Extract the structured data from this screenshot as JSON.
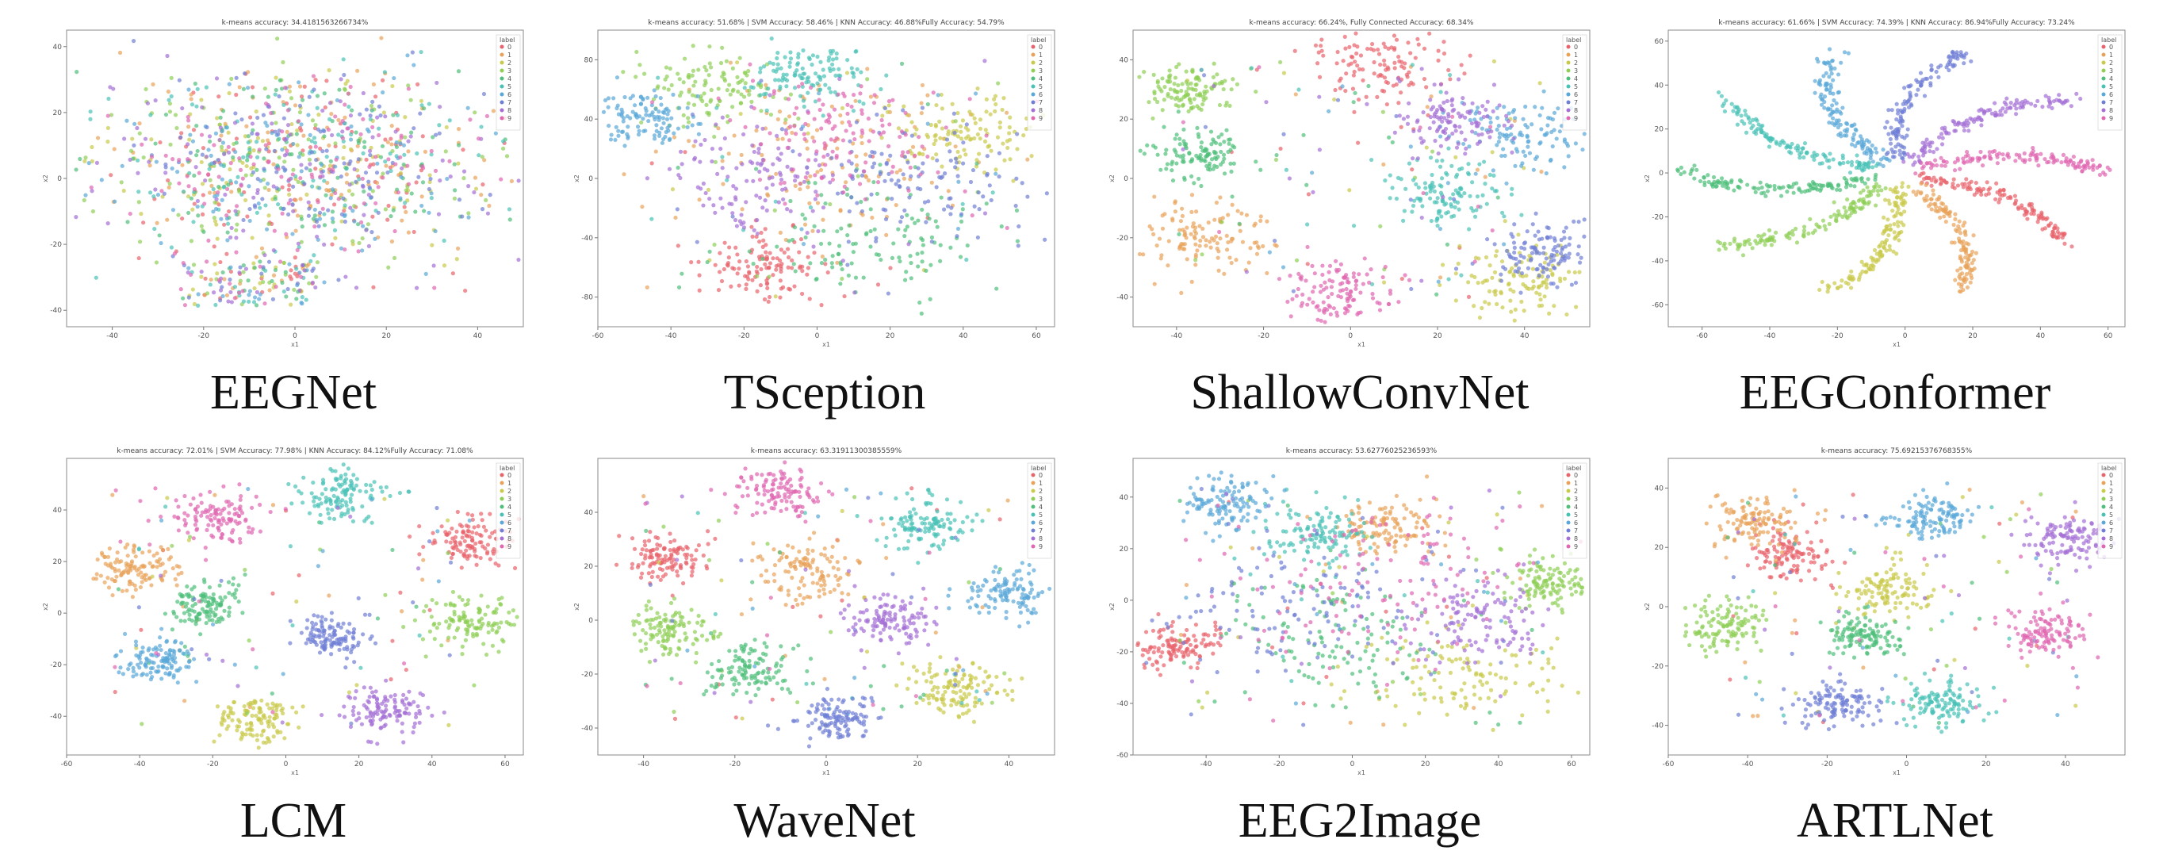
{
  "figure": {
    "panels": [
      {
        "caption": "EEGNet",
        "title": "k-means accuracy: 34.4181563266734%",
        "xlabel": "x1",
        "ylabel": "x2",
        "legend_title": "label"
      },
      {
        "caption": "TSception",
        "title": "k-means accuracy: 51.68% | SVM Accuracy: 58.46% | KNN Accuracy: 46.88%Fully Accuracy: 54.79%",
        "xlabel": "x1",
        "ylabel": "x2",
        "legend_title": "label"
      },
      {
        "caption": "ShallowConvNet",
        "title": "k-means accuracy: 66.24%, Fully Connected Accuracy: 68.34%",
        "xlabel": "x1",
        "ylabel": "x2",
        "legend_title": "label"
      },
      {
        "caption": "EEGConformer",
        "title": "k-means accuracy: 61.66% | SVM Accuracy: 74.39% | KNN Accuracy: 86.94%Fully Accuracy: 73.24%",
        "xlabel": "x1",
        "ylabel": "x2",
        "legend_title": "label"
      },
      {
        "caption": "LCM",
        "title": "k-means accuracy: 72.01% | SVM Accuracy: 77.98% | KNN Accuracy: 84.12%Fully Accuracy: 71.08%",
        "xlabel": "x1",
        "ylabel": "x2",
        "legend_title": "label"
      },
      {
        "caption": "WaveNet",
        "title": "k-means accuracy: 63.31911300385559%",
        "xlabel": "x1",
        "ylabel": "x2",
        "legend_title": "label"
      },
      {
        "caption": "EEG2Image",
        "title": "k-means accuracy: 53.62776025236593%",
        "xlabel": "x1",
        "ylabel": "x2",
        "legend_title": "label"
      },
      {
        "caption": "ARTLNet",
        "title": "k-means accuracy: 75.69215376768355%",
        "xlabel": "x1",
        "ylabel": "x2",
        "legend_title": "label"
      }
    ],
    "legend_labels": [
      "0",
      "1",
      "2",
      "3",
      "4",
      "5",
      "6",
      "7",
      "8",
      "9"
    ],
    "class_colors": [
      "#e8636b",
      "#e8a35a",
      "#c9c94a",
      "#8fcf55",
      "#4fbf7a",
      "#49c2b6",
      "#5aa8d8",
      "#6f7fd6",
      "#a46fd6",
      "#e067b0"
    ]
  },
  "chart_data": [
    {
      "type": "scatter",
      "caption": "EEGNet",
      "title": "k-means accuracy: 34.4181563266734%",
      "xlabel": "x1",
      "ylabel": "x2",
      "xlim": [
        -50,
        50
      ],
      "ylim": [
        -45,
        45
      ],
      "xticks": [
        -40,
        -20,
        0,
        20,
        40
      ],
      "yticks": [
        -40,
        -20,
        0,
        20,
        40
      ],
      "legend": "top-right",
      "series": [
        {
          "name": "0"
        },
        {
          "name": "1"
        },
        {
          "name": "2"
        },
        {
          "name": "3"
        },
        {
          "name": "4"
        },
        {
          "name": "5"
        },
        {
          "name": "6"
        },
        {
          "name": "7"
        },
        {
          "name": "8"
        },
        {
          "name": "9"
        }
      ]
    },
    {
      "type": "scatter",
      "caption": "TSception",
      "title": "k-means accuracy: 51.68% | SVM Accuracy: 58.46% | KNN Accuracy: 46.88%Fully Accuracy: 54.79%",
      "xlabel": "x1",
      "ylabel": "x2",
      "xlim": [
        -60,
        65
      ],
      "ylim": [
        -100,
        100
      ],
      "xticks": [
        -60,
        -40,
        -20,
        0,
        20,
        40,
        60
      ],
      "yticks": [
        -80,
        -40,
        0,
        40,
        80
      ],
      "legend": "top-right",
      "series": [
        {
          "name": "0"
        },
        {
          "name": "1"
        },
        {
          "name": "2"
        },
        {
          "name": "3"
        },
        {
          "name": "4"
        },
        {
          "name": "5"
        },
        {
          "name": "6"
        },
        {
          "name": "7"
        },
        {
          "name": "8"
        },
        {
          "name": "9"
        }
      ]
    },
    {
      "type": "scatter",
      "caption": "ShallowConvNet",
      "title": "k-means accuracy: 66.24%, Fully Connected Accuracy: 68.34%",
      "xlabel": "x1",
      "ylabel": "x2",
      "xlim": [
        -50,
        55
      ],
      "ylim": [
        -50,
        50
      ],
      "xticks": [
        -40,
        -20,
        0,
        20,
        40
      ],
      "yticks": [
        -40,
        -20,
        0,
        20,
        40
      ],
      "legend": "top-right",
      "series": [
        {
          "name": "0"
        },
        {
          "name": "1"
        },
        {
          "name": "2"
        },
        {
          "name": "3"
        },
        {
          "name": "4"
        },
        {
          "name": "5"
        },
        {
          "name": "6"
        },
        {
          "name": "7"
        },
        {
          "name": "8"
        },
        {
          "name": "9"
        }
      ]
    },
    {
      "type": "scatter",
      "caption": "EEGConformer",
      "title": "k-means accuracy: 61.66% | SVM Accuracy: 74.39% | KNN Accuracy: 86.94%Fully Accuracy: 73.24%",
      "xlabel": "x1",
      "ylabel": "x2",
      "xlim": [
        -70,
        65
      ],
      "ylim": [
        -70,
        65
      ],
      "xticks": [
        -60,
        -40,
        -20,
        0,
        20,
        40,
        60
      ],
      "yticks": [
        -60,
        -40,
        -20,
        0,
        20,
        40,
        60
      ],
      "legend": "top-right",
      "series": [
        {
          "name": "0"
        },
        {
          "name": "1"
        },
        {
          "name": "2"
        },
        {
          "name": "3"
        },
        {
          "name": "4"
        },
        {
          "name": "5"
        },
        {
          "name": "6"
        },
        {
          "name": "7"
        },
        {
          "name": "8"
        },
        {
          "name": "9"
        }
      ]
    },
    {
      "type": "scatter",
      "caption": "LCM",
      "title": "k-means accuracy: 72.01% | SVM Accuracy: 77.98% | KNN Accuracy: 84.12%Fully Accuracy: 71.08%",
      "xlabel": "x1",
      "ylabel": "x2",
      "xlim": [
        -60,
        65
      ],
      "ylim": [
        -55,
        60
      ],
      "xticks": [
        -60,
        -40,
        -20,
        0,
        20,
        40,
        60
      ],
      "yticks": [
        -40,
        -20,
        0,
        20,
        40
      ],
      "legend": "top-right",
      "series": [
        {
          "name": "0"
        },
        {
          "name": "1"
        },
        {
          "name": "2"
        },
        {
          "name": "3"
        },
        {
          "name": "4"
        },
        {
          "name": "5"
        },
        {
          "name": "6"
        },
        {
          "name": "7"
        },
        {
          "name": "8"
        },
        {
          "name": "9"
        }
      ]
    },
    {
      "type": "scatter",
      "caption": "WaveNet",
      "title": "k-means accuracy: 63.31911300385559%",
      "xlabel": "x1",
      "ylabel": "x2",
      "xlim": [
        -50,
        50
      ],
      "ylim": [
        -50,
        60
      ],
      "xticks": [
        -40,
        -20,
        0,
        20,
        40
      ],
      "yticks": [
        -40,
        -20,
        0,
        20,
        40
      ],
      "legend": "top-right",
      "series": [
        {
          "name": "0"
        },
        {
          "name": "1"
        },
        {
          "name": "2"
        },
        {
          "name": "3"
        },
        {
          "name": "4"
        },
        {
          "name": "5"
        },
        {
          "name": "6"
        },
        {
          "name": "7"
        },
        {
          "name": "8"
        },
        {
          "name": "9"
        }
      ]
    },
    {
      "type": "scatter",
      "caption": "EEG2Image",
      "title": "k-means accuracy: 53.62776025236593%",
      "xlabel": "x1",
      "ylabel": "x2",
      "xlim": [
        -60,
        65
      ],
      "ylim": [
        -60,
        55
      ],
      "xticks": [
        -40,
        -20,
        0,
        20,
        40,
        60
      ],
      "yticks": [
        -60,
        -40,
        -20,
        0,
        20,
        40
      ],
      "legend": "top-right",
      "series": [
        {
          "name": "0"
        },
        {
          "name": "1"
        },
        {
          "name": "2"
        },
        {
          "name": "3"
        },
        {
          "name": "4"
        },
        {
          "name": "5"
        },
        {
          "name": "6"
        },
        {
          "name": "7"
        },
        {
          "name": "8"
        },
        {
          "name": "9"
        }
      ]
    },
    {
      "type": "scatter",
      "caption": "ARTLNet",
      "title": "k-means accuracy: 75.69215376768355%",
      "xlabel": "x1",
      "ylabel": "x2",
      "xlim": [
        -60,
        55
      ],
      "ylim": [
        -50,
        50
      ],
      "xticks": [
        -60,
        -40,
        -20,
        0,
        20,
        40
      ],
      "yticks": [
        -40,
        -20,
        0,
        20,
        40
      ],
      "legend": "top-right",
      "series": [
        {
          "name": "0"
        },
        {
          "name": "1"
        },
        {
          "name": "2"
        },
        {
          "name": "3"
        },
        {
          "name": "4"
        },
        {
          "name": "5"
        },
        {
          "name": "6"
        },
        {
          "name": "7"
        },
        {
          "name": "8"
        },
        {
          "name": "9"
        }
      ]
    }
  ]
}
